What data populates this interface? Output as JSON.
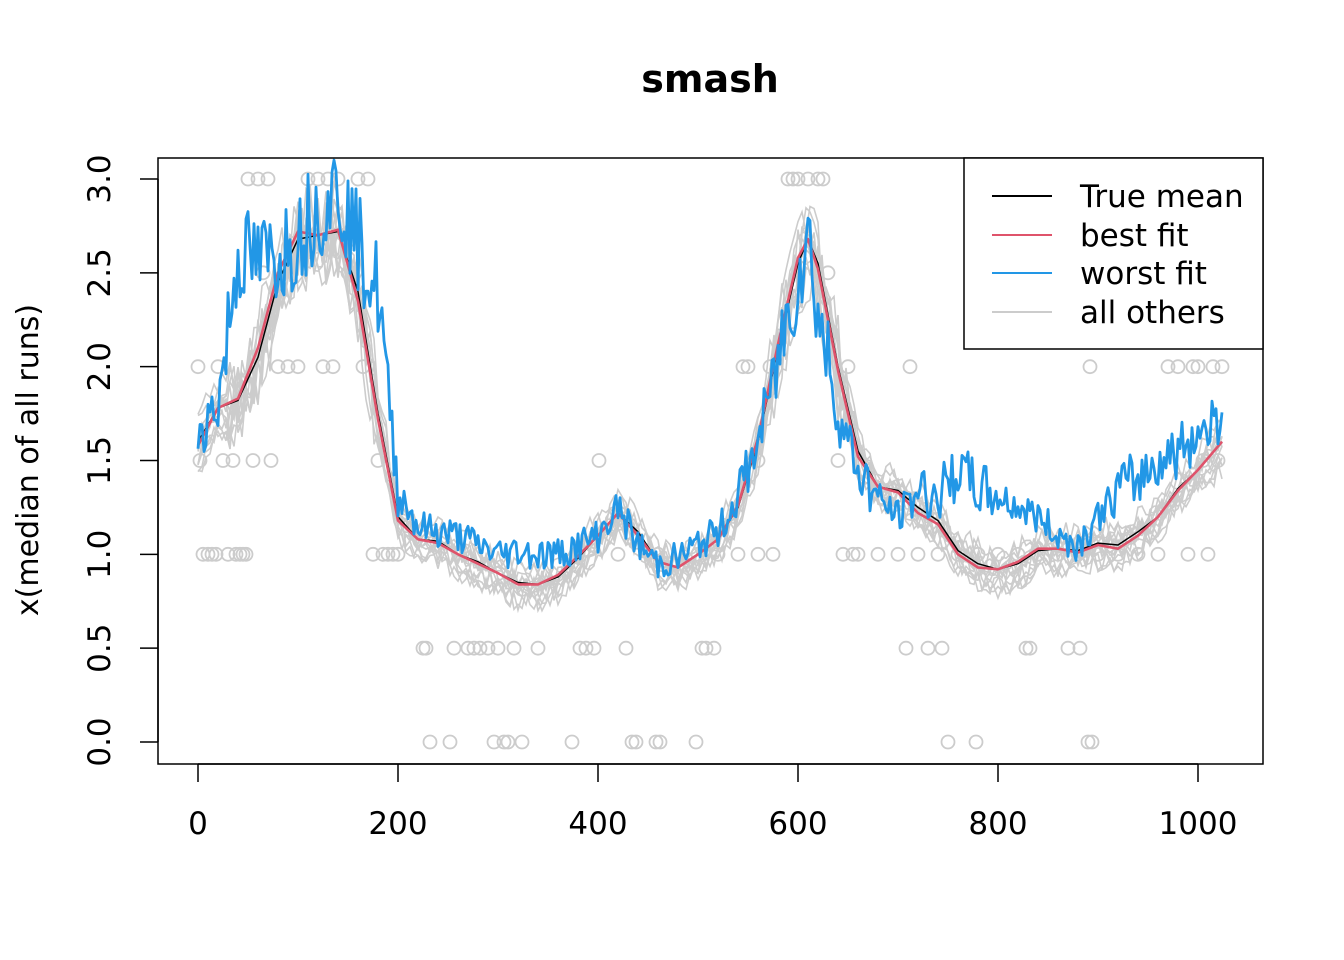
{
  "chart_data": {
    "type": "line",
    "title": "smash",
    "xlabel": "",
    "ylabel": "x(median of all runs)",
    "xlim": [
      0,
      1024
    ],
    "ylim": [
      0.0,
      3.0
    ],
    "x_ticks": [
      0,
      200,
      400,
      600,
      800,
      1000
    ],
    "y_ticks": [
      0.0,
      0.5,
      1.0,
      1.5,
      2.0,
      2.5,
      3.0
    ],
    "x_tick_labels": [
      "0",
      "200",
      "400",
      "600",
      "800",
      "1000"
    ],
    "y_tick_labels": [
      "0.0",
      "0.5",
      "1.0",
      "1.5",
      "2.0",
      "2.5",
      "3.0"
    ],
    "legend": {
      "position": "top-right",
      "entries": [
        {
          "label": "True mean",
          "color": "#000000"
        },
        {
          "label": "best fit",
          "color": "#DF536B"
        },
        {
          "label": "worst fit",
          "color": "#2297E6"
        },
        {
          "label": "all others",
          "color": "#CCCCCC"
        }
      ]
    },
    "series": [
      {
        "name": "True mean",
        "color": "#000000",
        "x": [
          0,
          20,
          40,
          60,
          80,
          100,
          120,
          140,
          160,
          180,
          200,
          220,
          240,
          260,
          280,
          300,
          320,
          340,
          360,
          380,
          400,
          420,
          440,
          460,
          480,
          500,
          520,
          540,
          560,
          580,
          600,
          610,
          620,
          640,
          660,
          680,
          700,
          720,
          740,
          760,
          780,
          800,
          820,
          840,
          860,
          880,
          900,
          920,
          940,
          960,
          980,
          1000,
          1024
        ],
        "values": [
          1.6,
          1.78,
          1.82,
          2.05,
          2.45,
          2.68,
          2.7,
          2.72,
          2.4,
          1.75,
          1.2,
          1.08,
          1.07,
          1.0,
          0.96,
          0.9,
          0.85,
          0.84,
          0.88,
          0.98,
          1.1,
          1.22,
          1.12,
          0.96,
          0.93,
          1.0,
          1.08,
          1.25,
          1.6,
          2.1,
          2.55,
          2.68,
          2.55,
          2.0,
          1.55,
          1.36,
          1.34,
          1.25,
          1.18,
          1.02,
          0.95,
          0.92,
          0.95,
          1.02,
          1.03,
          1.02,
          1.06,
          1.05,
          1.12,
          1.2,
          1.35,
          1.45,
          1.6
        ]
      },
      {
        "name": "best fit",
        "color": "#DF536B",
        "x": [
          0,
          20,
          40,
          60,
          80,
          100,
          120,
          140,
          160,
          180,
          200,
          220,
          240,
          260,
          280,
          300,
          320,
          340,
          360,
          380,
          400,
          420,
          440,
          460,
          480,
          500,
          520,
          540,
          560,
          580,
          600,
          610,
          620,
          640,
          660,
          680,
          700,
          720,
          740,
          760,
          780,
          800,
          820,
          840,
          860,
          880,
          900,
          920,
          940,
          960,
          980,
          1000,
          1024
        ],
        "values": [
          1.58,
          1.78,
          1.83,
          2.1,
          2.5,
          2.72,
          2.7,
          2.73,
          2.35,
          1.72,
          1.18,
          1.08,
          1.06,
          1.0,
          0.95,
          0.9,
          0.84,
          0.84,
          0.89,
          0.99,
          1.1,
          1.22,
          1.1,
          0.96,
          0.93,
          1.0,
          1.08,
          1.26,
          1.62,
          2.12,
          2.58,
          2.68,
          2.52,
          1.98,
          1.52,
          1.36,
          1.33,
          1.22,
          1.16,
          1.0,
          0.93,
          0.92,
          0.96,
          1.03,
          1.03,
          1.01,
          1.05,
          1.03,
          1.1,
          1.2,
          1.34,
          1.45,
          1.6
        ]
      },
      {
        "name": "worst fit",
        "color": "#2297E6",
        "x": [
          0,
          20,
          40,
          60,
          80,
          100,
          120,
          140,
          160,
          180,
          200,
          220,
          240,
          260,
          280,
          300,
          320,
          340,
          360,
          380,
          400,
          420,
          440,
          460,
          480,
          500,
          520,
          540,
          560,
          580,
          600,
          610,
          620,
          640,
          660,
          680,
          700,
          720,
          740,
          760,
          780,
          800,
          820,
          840,
          860,
          880,
          900,
          920,
          940,
          960,
          980,
          1000,
          1024
        ],
        "values": [
          1.65,
          1.8,
          2.6,
          2.55,
          2.6,
          2.7,
          2.85,
          2.95,
          2.65,
          2.4,
          1.35,
          1.15,
          1.12,
          1.1,
          1.05,
          1.0,
          1.02,
          1.0,
          1.0,
          1.05,
          1.1,
          1.25,
          1.05,
          0.95,
          0.98,
          1.05,
          1.12,
          1.3,
          1.6,
          2.05,
          2.5,
          2.7,
          2.3,
          1.75,
          1.45,
          1.3,
          1.2,
          1.35,
          1.3,
          1.45,
          1.35,
          1.3,
          1.25,
          1.2,
          1.1,
          1.05,
          1.2,
          1.35,
          1.4,
          1.5,
          1.55,
          1.65,
          1.75
        ]
      }
    ],
    "scatter_points": {
      "name": "all others (points)",
      "color": "#CCCCCC",
      "points": [
        [
          0,
          2.0
        ],
        [
          2,
          1.5
        ],
        [
          5,
          1.0
        ],
        [
          10,
          1.0
        ],
        [
          14,
          1.0
        ],
        [
          18,
          1.0
        ],
        [
          20,
          2.0
        ],
        [
          25,
          1.5
        ],
        [
          30,
          1.0
        ],
        [
          35,
          1.5
        ],
        [
          38,
          1.0
        ],
        [
          42,
          1.0
        ],
        [
          45,
          1.0
        ],
        [
          48,
          1.0
        ],
        [
          50,
          3.0
        ],
        [
          55,
          1.5
        ],
        [
          60,
          3.0
        ],
        [
          65,
          2.5
        ],
        [
          70,
          3.0
        ],
        [
          73,
          1.5
        ],
        [
          80,
          2.0
        ],
        [
          90,
          2.0
        ],
        [
          100,
          2.0
        ],
        [
          110,
          3.0
        ],
        [
          120,
          3.0
        ],
        [
          125,
          2.0
        ],
        [
          130,
          3.0
        ],
        [
          135,
          2.0
        ],
        [
          140,
          3.0
        ],
        [
          150,
          2.5
        ],
        [
          160,
          3.0
        ],
        [
          165,
          2.0
        ],
        [
          170,
          3.0
        ],
        [
          175,
          1.0
        ],
        [
          180,
          1.5
        ],
        [
          185,
          1.0
        ],
        [
          190,
          1.0
        ],
        [
          195,
          1.0
        ],
        [
          200,
          1.0
        ],
        [
          225,
          0.5
        ],
        [
          228,
          0.5
        ],
        [
          232,
          0.0
        ],
        [
          252,
          0.0
        ],
        [
          256,
          0.5
        ],
        [
          270,
          0.5
        ],
        [
          276,
          0.5
        ],
        [
          282,
          0.5
        ],
        [
          290,
          0.5
        ],
        [
          296,
          0.0
        ],
        [
          300,
          0.5
        ],
        [
          306,
          0.0
        ],
        [
          310,
          0.0
        ],
        [
          316,
          0.5
        ],
        [
          324,
          0.0
        ],
        [
          340,
          0.5
        ],
        [
          374,
          0.0
        ],
        [
          382,
          0.5
        ],
        [
          388,
          0.5
        ],
        [
          396,
          0.5
        ],
        [
          401,
          1.5
        ],
        [
          428,
          0.5
        ],
        [
          434,
          0.0
        ],
        [
          438,
          0.0
        ],
        [
          458,
          0.0
        ],
        [
          462,
          0.0
        ],
        [
          498,
          0.0
        ],
        [
          504,
          0.5
        ],
        [
          508,
          0.5
        ],
        [
          516,
          0.5
        ],
        [
          380,
          1.0
        ],
        [
          420,
          1.0
        ],
        [
          460,
          1.0
        ],
        [
          500,
          1.0
        ],
        [
          520,
          1.0
        ],
        [
          540,
          1.0
        ],
        [
          560,
          1.0
        ],
        [
          575,
          1.0
        ],
        [
          545,
          2.0
        ],
        [
          550,
          2.0
        ],
        [
          560,
          1.5
        ],
        [
          572,
          2.0
        ],
        [
          590,
          3.0
        ],
        [
          595,
          3.0
        ],
        [
          600,
          3.0
        ],
        [
          610,
          3.0
        ],
        [
          620,
          3.0
        ],
        [
          625,
          3.0
        ],
        [
          630,
          2.5
        ],
        [
          640,
          1.5
        ],
        [
          645,
          1.0
        ],
        [
          650,
          2.0
        ],
        [
          655,
          1.0
        ],
        [
          660,
          1.0
        ],
        [
          680,
          1.0
        ],
        [
          700,
          1.0
        ],
        [
          712,
          2.0
        ],
        [
          720,
          1.0
        ],
        [
          740,
          1.0
        ],
        [
          760,
          1.0
        ],
        [
          780,
          1.0
        ],
        [
          800,
          1.0
        ],
        [
          820,
          1.0
        ],
        [
          840,
          1.0
        ],
        [
          860,
          1.0
        ],
        [
          880,
          1.0
        ],
        [
          892,
          2.0
        ],
        [
          900,
          1.0
        ],
        [
          920,
          1.0
        ],
        [
          940,
          1.0
        ],
        [
          960,
          1.0
        ],
        [
          970,
          2.0
        ],
        [
          980,
          2.0
        ],
        [
          990,
          1.0
        ],
        [
          995,
          2.0
        ],
        [
          1000,
          2.0
        ],
        [
          1005,
          1.5
        ],
        [
          1010,
          1.0
        ],
        [
          1015,
          2.0
        ],
        [
          1020,
          1.5
        ],
        [
          1024,
          2.0
        ],
        [
          708,
          0.5
        ],
        [
          730,
          0.5
        ],
        [
          744,
          0.5
        ],
        [
          750,
          0.0
        ],
        [
          778,
          0.0
        ],
        [
          828,
          0.5
        ],
        [
          832,
          0.5
        ],
        [
          870,
          0.5
        ],
        [
          882,
          0.5
        ],
        [
          890,
          0.0
        ],
        [
          894,
          0.0
        ]
      ]
    }
  }
}
